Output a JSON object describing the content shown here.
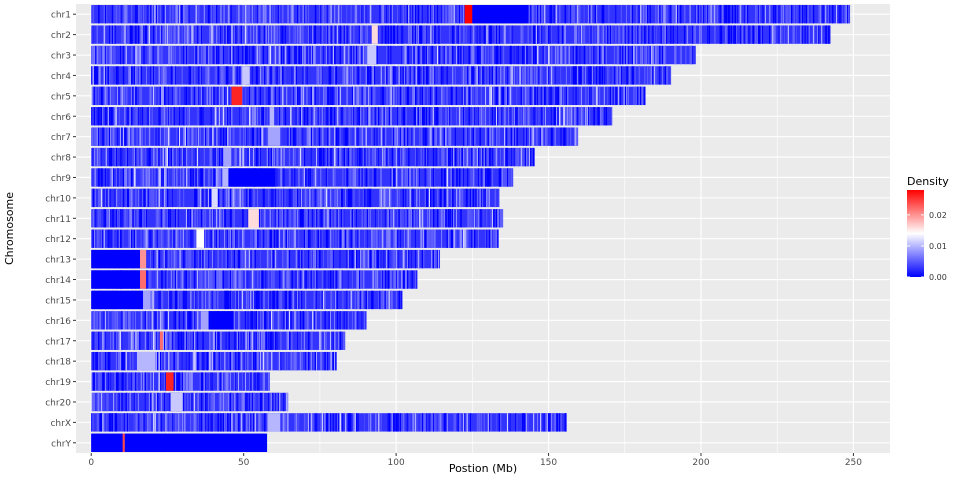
{
  "chart_data": {
    "type": "heatmap",
    "title": "",
    "xlabel": "Postion (Mb)",
    "ylabel": "Chromosome",
    "xlim": [
      -5,
      262
    ],
    "x_ticks": [
      0,
      50,
      100,
      150,
      200,
      250
    ],
    "grid": true,
    "legend": {
      "title": "Density",
      "placement": "right",
      "ticks": [
        "0.00",
        "0.01",
        "0.02"
      ],
      "tick_values": [
        0.0,
        0.01,
        0.02
      ],
      "range": [
        0.0,
        0.028
      ],
      "colors": {
        "low": "#0000ff",
        "mid": "#ffffff",
        "high": "#ff0000"
      }
    },
    "background_color": "#ebebeb",
    "chromosomes": [
      {
        "name": "chr1",
        "length": 248.9,
        "features": [
          {
            "start": 122.5,
            "end": 125.0,
            "density": 0.028
          },
          {
            "start": 125.0,
            "end": 143.5,
            "density": 0.0
          }
        ]
      },
      {
        "name": "chr2",
        "length": 242.2,
        "features": [
          {
            "start": 92.0,
            "end": 94.0,
            "density": 0.016
          }
        ]
      },
      {
        "name": "chr3",
        "length": 198.3,
        "features": [
          {
            "start": 90.5,
            "end": 93.5,
            "density": 0.011
          }
        ]
      },
      {
        "name": "chr4",
        "length": 190.2,
        "features": [
          {
            "start": 49.5,
            "end": 52.0,
            "density": 0.011
          }
        ]
      },
      {
        "name": "chr5",
        "length": 181.5,
        "features": [
          {
            "start": 46.0,
            "end": 49.5,
            "density": 0.026
          }
        ]
      },
      {
        "name": "chr6",
        "length": 170.8,
        "features": [
          {
            "start": 58.5,
            "end": 60.0,
            "density": 0.01
          }
        ]
      },
      {
        "name": "chr7",
        "length": 159.3,
        "features": [
          {
            "start": 58.0,
            "end": 62.0,
            "density": 0.009
          }
        ]
      },
      {
        "name": "chr8",
        "length": 145.1,
        "features": [
          {
            "start": 43.5,
            "end": 46.0,
            "density": 0.009
          }
        ]
      },
      {
        "name": "chr9",
        "length": 138.4,
        "features": [
          {
            "start": 43.0,
            "end": 45.0,
            "density": 0.01
          },
          {
            "start": 45.0,
            "end": 60.5,
            "density": 0.0
          }
        ]
      },
      {
        "name": "chr10",
        "length": 133.8,
        "features": [
          {
            "start": 39.5,
            "end": 41.5,
            "density": 0.012
          }
        ]
      },
      {
        "name": "chr11",
        "length": 135.1,
        "features": [
          {
            "start": 51.5,
            "end": 55.0,
            "density": 0.016
          }
        ]
      },
      {
        "name": "chr12",
        "length": 133.3,
        "features": [
          {
            "start": 34.5,
            "end": 37.0,
            "density": 0.014
          }
        ]
      },
      {
        "name": "chr13",
        "length": 114.4,
        "features": [
          {
            "start": 0.0,
            "end": 16.0,
            "density": 0.0
          },
          {
            "start": 16.0,
            "end": 18.0,
            "density": 0.02
          }
        ]
      },
      {
        "name": "chr14",
        "length": 107.0,
        "features": [
          {
            "start": 0.0,
            "end": 16.0,
            "density": 0.0
          },
          {
            "start": 16.0,
            "end": 18.0,
            "density": 0.022
          }
        ]
      },
      {
        "name": "chr15",
        "length": 102.0,
        "features": [
          {
            "start": 0.0,
            "end": 17.0,
            "density": 0.0
          },
          {
            "start": 17.0,
            "end": 19.5,
            "density": 0.009
          }
        ]
      },
      {
        "name": "chr16",
        "length": 90.3,
        "features": [
          {
            "start": 36.0,
            "end": 38.5,
            "density": 0.009
          },
          {
            "start": 38.5,
            "end": 46.5,
            "density": 0.0
          }
        ]
      },
      {
        "name": "chr17",
        "length": 83.3,
        "features": [
          {
            "start": 22.5,
            "end": 23.5,
            "density": 0.022
          }
        ]
      },
      {
        "name": "chr18",
        "length": 80.4,
        "features": [
          {
            "start": 15.0,
            "end": 21.0,
            "density": 0.01
          }
        ]
      },
      {
        "name": "chr19",
        "length": 58.6,
        "features": [
          {
            "start": 24.5,
            "end": 27.0,
            "density": 0.026
          }
        ]
      },
      {
        "name": "chr20",
        "length": 64.4,
        "features": [
          {
            "start": 26.0,
            "end": 30.0,
            "density": 0.011
          }
        ]
      },
      {
        "name": "chrX",
        "length": 156.0,
        "features": [
          {
            "start": 58.0,
            "end": 62.0,
            "density": 0.01
          }
        ]
      },
      {
        "name": "chrY",
        "length": 57.2,
        "features": [
          {
            "start": 0.0,
            "end": 57.2,
            "density": 0.0
          },
          {
            "start": 10.3,
            "end": 11.0,
            "density": 0.024
          }
        ]
      }
    ]
  }
}
